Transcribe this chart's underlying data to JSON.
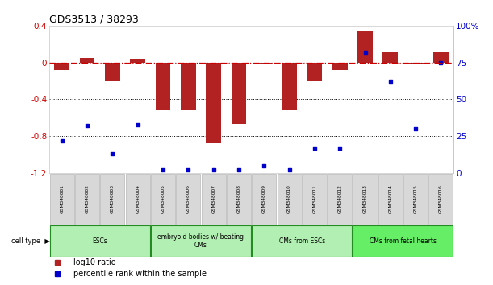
{
  "title": "GDS3513 / 38293",
  "samples": [
    "GSM348001",
    "GSM348002",
    "GSM348003",
    "GSM348004",
    "GSM348005",
    "GSM348006",
    "GSM348007",
    "GSM348008",
    "GSM348009",
    "GSM348010",
    "GSM348011",
    "GSM348012",
    "GSM348013",
    "GSM348014",
    "GSM348015",
    "GSM348016"
  ],
  "log10_ratio": [
    -0.08,
    0.05,
    -0.2,
    0.04,
    -0.52,
    -0.52,
    -0.88,
    -0.67,
    -0.02,
    -0.52,
    -0.2,
    -0.08,
    0.35,
    0.12,
    -0.02,
    0.12
  ],
  "percentile_rank": [
    22,
    32,
    13,
    33,
    2,
    2,
    2,
    2,
    5,
    2,
    17,
    17,
    82,
    62,
    30,
    75
  ],
  "ylim_left": [
    -1.2,
    0.4
  ],
  "ylim_right": [
    0,
    100
  ],
  "bar_color": "#b22222",
  "dot_color": "#0000cc",
  "hline_color": "#cc0000",
  "dotline_color": "black",
  "cell_types": [
    {
      "label": "ESCs",
      "start": 0,
      "end": 3,
      "color": "#b2efb2"
    },
    {
      "label": "embryoid bodies w/ beating\nCMs",
      "start": 4,
      "end": 7,
      "color": "#b2efb2"
    },
    {
      "label": "CMs from ESCs",
      "start": 8,
      "end": 11,
      "color": "#b2efb2"
    },
    {
      "label": "CMs from fetal hearts",
      "start": 12,
      "end": 15,
      "color": "#66ee66"
    }
  ],
  "right_axis_color": "#0000cc",
  "left_axis_color": "#cc0000",
  "legend_bar_label": "log10 ratio",
  "legend_dot_label": "percentile rank within the sample"
}
